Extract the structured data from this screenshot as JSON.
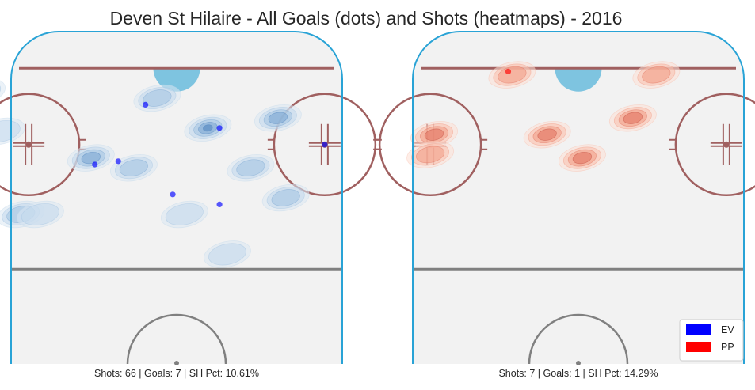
{
  "title": "Deven St Hilaire - All Goals (dots) and Shots (heatmaps) - 2016",
  "colors": {
    "rink_fill": "#f2f2f2",
    "boards": "#29a3d6",
    "goal_line": "#a06060",
    "faceoff": "#a06060",
    "blue_line": "#808080",
    "center_circle": "#808080",
    "crease": "#7ec4e0",
    "ev": "#0000ff",
    "pp": "#ff0000",
    "ev_heat": [
      "#dbe7f3",
      "#c3d9ec",
      "#a3c4e2",
      "#7aa6d1",
      "#4f84bd"
    ],
    "pp_heat": [
      "#fde0d6",
      "#f9bfad",
      "#f29a84",
      "#e0705c",
      "#c04a3c"
    ]
  },
  "chart_data": [
    {
      "type": "scatter",
      "panel": "EV",
      "shots": 66,
      "goals": 7,
      "sh_pct": "10.61%",
      "caption": "Shots: 66 | Goals: 7 | SH Pct: 10.61%",
      "goal_points": [
        {
          "x": -8,
          "y": 78
        },
        {
          "x": 11,
          "y": 71
        },
        {
          "x": 38,
          "y": 66
        },
        {
          "x": -21,
          "y": 60
        },
        {
          "x": -15,
          "y": 61
        },
        {
          "x": -1,
          "y": 51
        },
        {
          "x": 11,
          "y": 48
        }
      ],
      "shot_clusters": [
        {
          "x": -5,
          "y": 80,
          "level": 2
        },
        {
          "x": 8,
          "y": 71,
          "level": 4
        },
        {
          "x": 26,
          "y": 74,
          "level": 3
        },
        {
          "x": -22,
          "y": 62,
          "level": 3
        },
        {
          "x": -11,
          "y": 59,
          "level": 2
        },
        {
          "x": 19,
          "y": 59,
          "level": 2
        },
        {
          "x": 28,
          "y": 50,
          "level": 2
        },
        {
          "x": -40,
          "y": 45,
          "level": 2
        },
        {
          "x": -50,
          "y": 82,
          "level": 2
        },
        {
          "x": -45,
          "y": 70,
          "level": 1
        },
        {
          "x": 2,
          "y": 45,
          "level": 1
        },
        {
          "x": -62,
          "y": 75,
          "level": 1
        },
        {
          "x": -35,
          "y": 45,
          "level": 1
        },
        {
          "x": 13,
          "y": 33,
          "level": 1
        }
      ]
    },
    {
      "type": "scatter",
      "panel": "PP",
      "shots": 7,
      "goals": 1,
      "sh_pct": "14.29%",
      "caption": "Shots: 7 | Goals: 1 | SH Pct: 14.29%",
      "goal_points": [
        {
          "x": -18,
          "y": 88
        }
      ],
      "shot_clusters": [
        {
          "x": -17,
          "y": 87,
          "level": 2
        },
        {
          "x": 20,
          "y": 87,
          "level": 2
        },
        {
          "x": -37,
          "y": 69,
          "level": 3
        },
        {
          "x": -8,
          "y": 69,
          "level": 3
        },
        {
          "x": 1,
          "y": 62,
          "level": 3
        },
        {
          "x": 14,
          "y": 74,
          "level": 3
        },
        {
          "x": -38,
          "y": 63,
          "level": 2
        }
      ]
    }
  ],
  "legend": [
    {
      "label": "EV",
      "color": "#0000ff"
    },
    {
      "label": "PP",
      "color": "#ff0000"
    }
  ]
}
